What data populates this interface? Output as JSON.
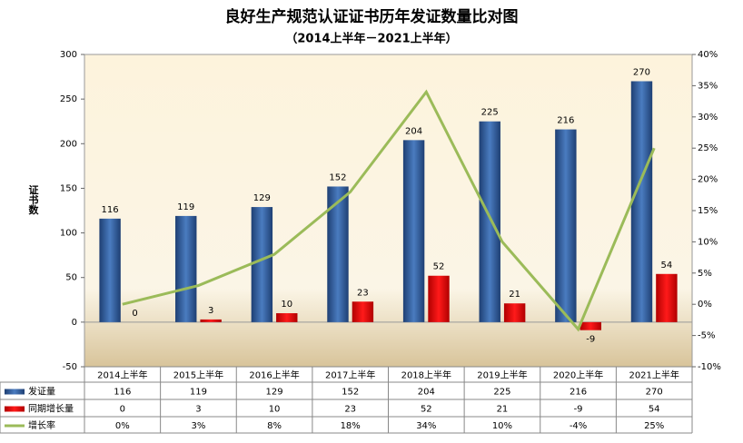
{
  "chart_data": {
    "type": "bar-line",
    "title": "良好生产规范认证证书历年发证数量比对图",
    "subtitle": "（2014上半年－2021上半年）",
    "y_label": "证书数",
    "categories": [
      "2014上半年",
      "2015上半年",
      "2016上半年",
      "2017上半年",
      "2018上半年",
      "2019上半年",
      "2020上半年",
      "2021上半年"
    ],
    "series": [
      {
        "name": "发证量",
        "color": "#2f5f9e",
        "values": [
          116,
          119,
          129,
          152,
          204,
          225,
          216,
          270
        ]
      },
      {
        "name": "同期增长量",
        "color": "#e00000",
        "values": [
          0,
          3,
          10,
          23,
          52,
          21,
          -9,
          54
        ]
      },
      {
        "name": "增长率",
        "color": "#9bbb59",
        "axis": "y2",
        "values": [
          0,
          3,
          8,
          18,
          34,
          10,
          -4,
          25
        ],
        "value_labels": [
          "0%",
          "3%",
          "8%",
          "18%",
          "34%",
          "10%",
          "-4%",
          "25%"
        ]
      }
    ],
    "ylim": [
      -50,
      300
    ],
    "yticks": [
      -50,
      0,
      50,
      100,
      150,
      200,
      250,
      300
    ],
    "y2lim": [
      -10,
      40
    ],
    "y2ticks": [
      {
        "value": -10,
        "label": "-10%"
      },
      {
        "value": -5,
        "label": "-5%"
      },
      {
        "value": 0,
        "label": "0%"
      },
      {
        "value": 5,
        "label": "5%"
      },
      {
        "value": 10,
        "label": "10%"
      },
      {
        "value": 15,
        "label": "15%"
      },
      {
        "value": 20,
        "label": "20%"
      },
      {
        "value": 25,
        "label": "25%"
      },
      {
        "value": 30,
        "label": "30%"
      },
      {
        "value": 35,
        "label": "35%"
      },
      {
        "value": 40,
        "label": "40%"
      }
    ]
  }
}
